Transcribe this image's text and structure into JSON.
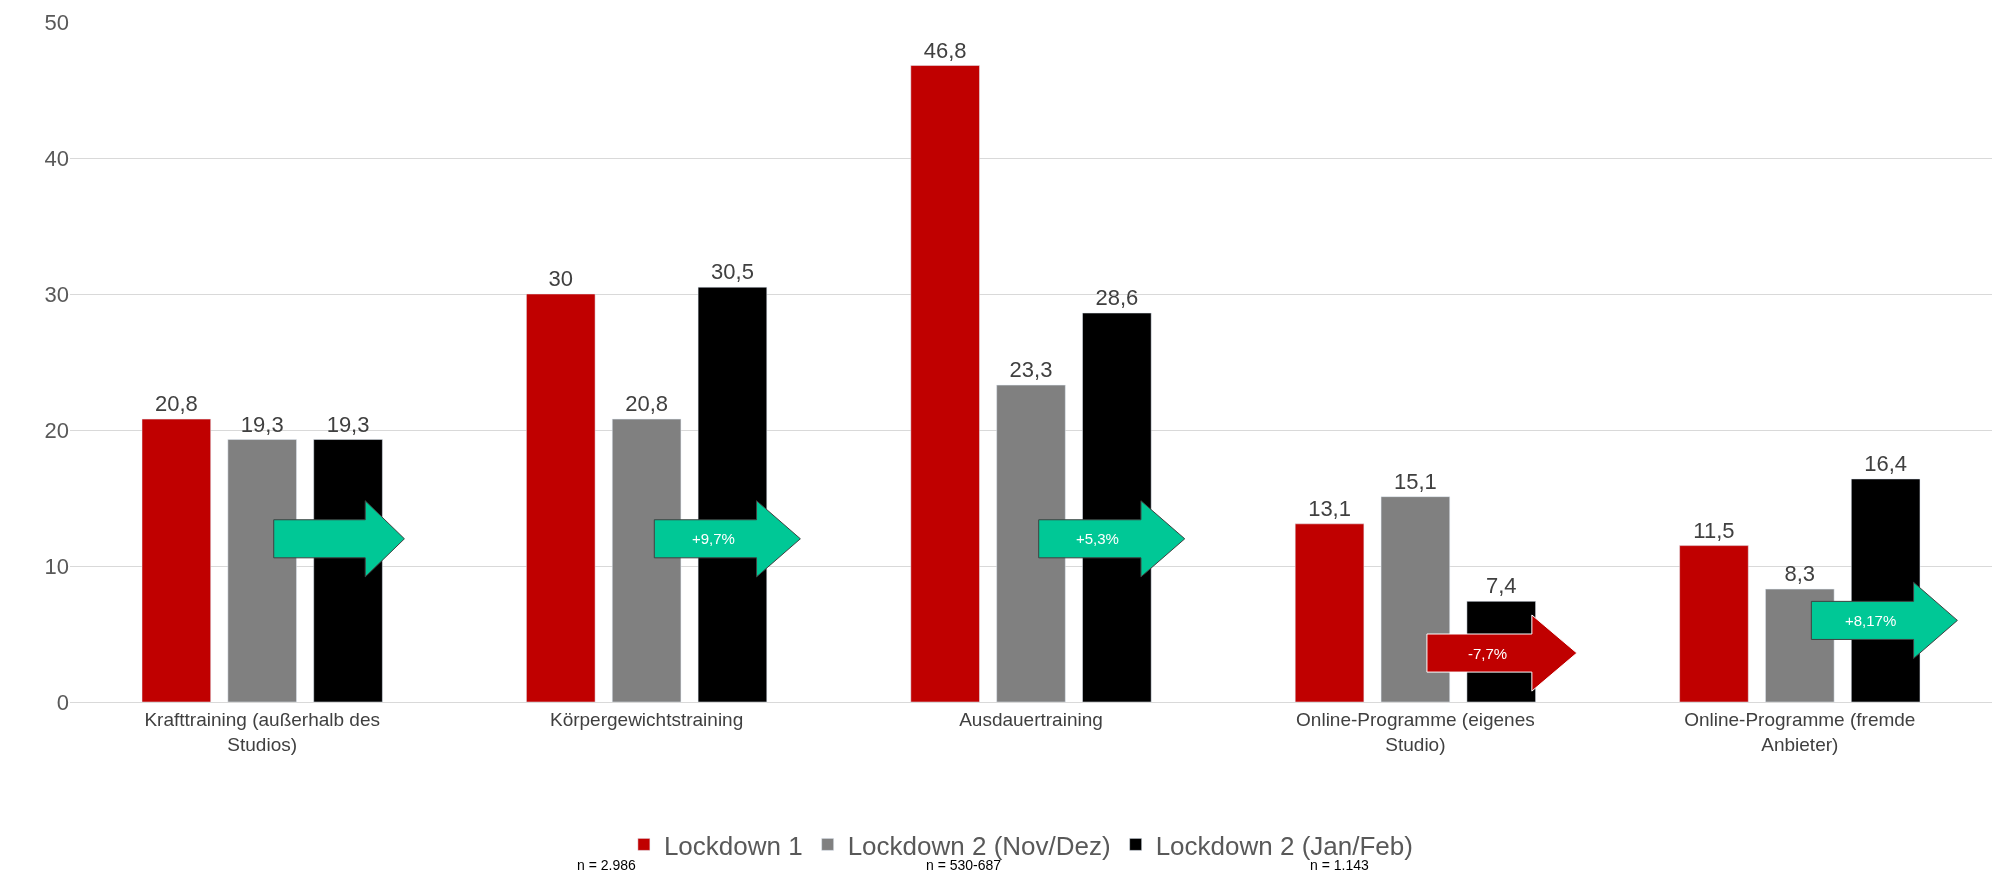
{
  "chart_data": {
    "type": "bar",
    "categories": [
      "Krafttraining (außerhalb des Studios)",
      "Körpergewichtstraining",
      "Ausdauertraining",
      "Online-Programme (eigenes Studio)",
      "Online-Programme (fremde Anbieter)"
    ],
    "series": [
      {
        "name": "Lockdown 1",
        "color": "#c00000",
        "values": [
          20.8,
          30,
          46.8,
          13.1,
          11.5
        ],
        "value_labels": [
          "20,8",
          "30",
          "46,8",
          "13,1",
          "11,5"
        ]
      },
      {
        "name": "Lockdown 2 (Nov/Dez)",
        "color": "#808080",
        "values": [
          19.3,
          20.8,
          23.3,
          15.1,
          8.3
        ],
        "value_labels": [
          "19,3",
          "20,8",
          "23,3",
          "15,1",
          "8,3"
        ]
      },
      {
        "name": "Lockdown 2 (Jan/Feb)",
        "color": "#000000",
        "values": [
          19.3,
          30.5,
          28.6,
          7.4,
          16.4
        ],
        "value_labels": [
          "19,3",
          "30,5",
          "28,6",
          "7,4",
          "16,4"
        ]
      }
    ],
    "ylim": [
      0,
      50
    ],
    "yticks": [
      0,
      10,
      20,
      30,
      40,
      50
    ],
    "grid": "y",
    "legend": "bottom",
    "annotations": [
      "+9,7%",
      "+5,3%",
      "-7,7%",
      "+8,17%",
      "n = 2.986",
      "n = 530-687",
      "n = 1.143"
    ]
  }
}
